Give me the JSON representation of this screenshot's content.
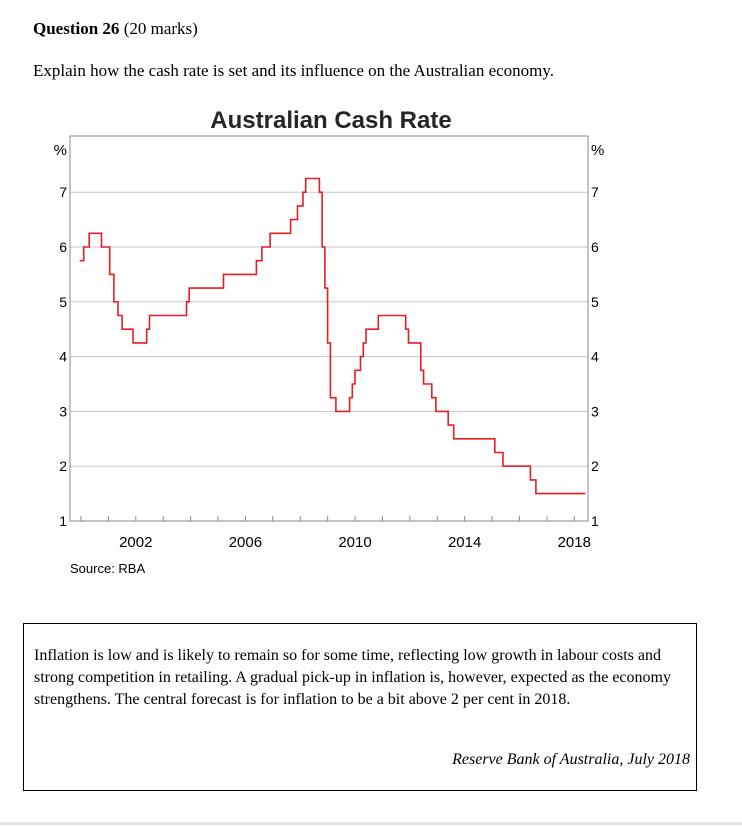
{
  "question": {
    "heading": "Question 26",
    "marks": "(20 marks)",
    "text": "Explain how the cash rate is set and its influence on the Australian economy."
  },
  "chart_data": {
    "type": "line",
    "title": "Australian Cash Rate",
    "ylabel_left": "%",
    "ylabel_right": "%",
    "source": "Source:  RBA",
    "xlim": [
      1999.6,
      2018.5
    ],
    "ylim": [
      1,
      8
    ],
    "y_ticks": [
      1,
      2,
      3,
      4,
      5,
      6,
      7
    ],
    "x_tick_labels": [
      "2002",
      "2006",
      "2010",
      "2014",
      "2018"
    ],
    "x_tick_positions": [
      2002,
      2006,
      2010,
      2014,
      2018
    ],
    "grid": true,
    "series_color": "#e31e24",
    "series": [
      {
        "steps": [
          [
            1999.95,
            5.75
          ],
          [
            2000.1,
            6.0
          ],
          [
            2000.3,
            6.25
          ],
          [
            2000.75,
            6.0
          ],
          [
            2001.05,
            5.5
          ],
          [
            2001.2,
            5.0
          ],
          [
            2001.35,
            4.75
          ],
          [
            2001.5,
            4.5
          ],
          [
            2001.9,
            4.25
          ],
          [
            2002.4,
            4.5
          ],
          [
            2002.5,
            4.75
          ],
          [
            2003.85,
            5.0
          ],
          [
            2003.95,
            5.25
          ],
          [
            2005.2,
            5.5
          ],
          [
            2006.4,
            5.75
          ],
          [
            2006.6,
            6.0
          ],
          [
            2006.9,
            6.25
          ],
          [
            2007.65,
            6.5
          ],
          [
            2007.9,
            6.75
          ],
          [
            2008.1,
            7.0
          ],
          [
            2008.2,
            7.25
          ],
          [
            2008.7,
            7.0
          ],
          [
            2008.8,
            6.0
          ],
          [
            2008.9,
            5.25
          ],
          [
            2009.0,
            4.25
          ],
          [
            2009.1,
            3.25
          ],
          [
            2009.3,
            3.0
          ],
          [
            2009.8,
            3.25
          ],
          [
            2009.9,
            3.5
          ],
          [
            2010.0,
            3.75
          ],
          [
            2010.2,
            4.0
          ],
          [
            2010.3,
            4.25
          ],
          [
            2010.4,
            4.5
          ],
          [
            2010.85,
            4.75
          ],
          [
            2011.85,
            4.5
          ],
          [
            2011.95,
            4.25
          ],
          [
            2012.4,
            3.75
          ],
          [
            2012.5,
            3.5
          ],
          [
            2012.8,
            3.25
          ],
          [
            2012.95,
            3.0
          ],
          [
            2013.4,
            2.75
          ],
          [
            2013.6,
            2.5
          ],
          [
            2015.1,
            2.25
          ],
          [
            2015.4,
            2.0
          ],
          [
            2016.4,
            1.75
          ],
          [
            2016.6,
            1.5
          ],
          [
            2018.4,
            1.5
          ]
        ]
      }
    ]
  },
  "source_extract": {
    "body": "Inflation is low and is likely to remain so for some time, reflecting low growth in labour costs and strong competition in retailing. A gradual pick-up in inflation is, however, expected as the economy strengthens. The central forecast is for inflation to be a bit above 2 per cent in 2018.",
    "credit": "Reserve Bank of Australia, July 2018"
  }
}
